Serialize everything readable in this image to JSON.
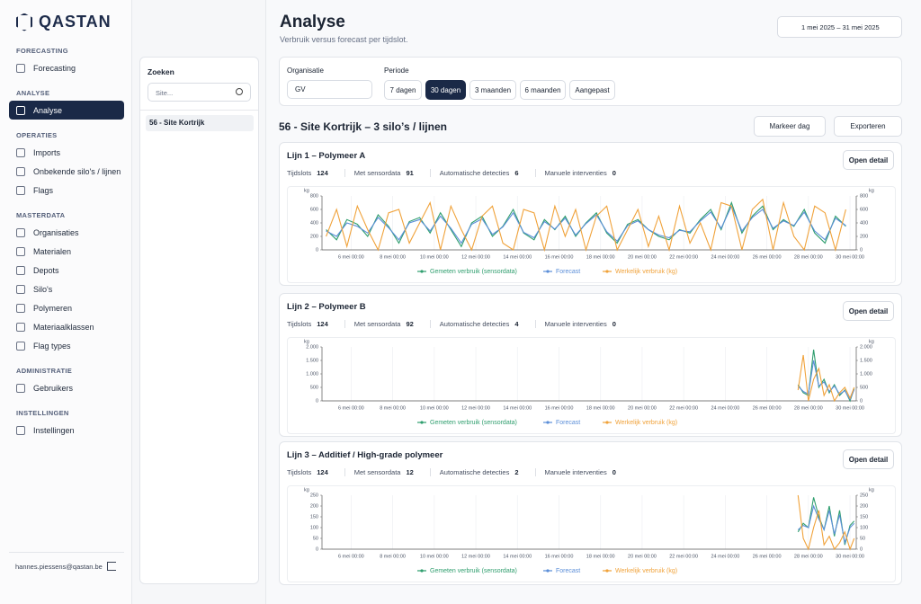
{
  "sidebar": {
    "brand": "QASTAN",
    "sections": [
      {
        "title": "FORECASTING",
        "items": [
          "Forecasting"
        ]
      },
      {
        "title": "ANALYSE",
        "items": [
          "Analyse"
        ]
      },
      {
        "title": "OPERATIES",
        "items": [
          "Imports",
          "Onbekende silo's / lijnen",
          "Flags"
        ]
      },
      {
        "title": "MASTERDATA",
        "items": [
          "Organisaties",
          "Materialen",
          "Depots",
          "Silo's",
          "Polymeren",
          "Materiaalklassen",
          "Flag types"
        ]
      },
      {
        "title": "ADMINISTRATIE",
        "items": [
          "Gebruikers"
        ]
      },
      {
        "title": "INSTELLINGEN",
        "items": [
          "Instellingen"
        ]
      }
    ],
    "active": "Analyse",
    "user": "hannes.piessens@qastan.be"
  },
  "header": {
    "title": "Analyse",
    "subtitle": "Verbruik versus forecast per tijdslot.",
    "date_range": "1 mei 2025 – 31 mei 2025"
  },
  "search": {
    "title": "Zoeken",
    "placeholder": "Site...",
    "results": [
      "56 - Site Kortrijk"
    ]
  },
  "filters": {
    "org_label": "Organisatie",
    "org_value": "GV",
    "period_label": "Periode",
    "periods": [
      "7 dagen",
      "30 dagen",
      "3 maanden",
      "6 maanden",
      "Aangepast"
    ],
    "active_period": "30 dagen"
  },
  "section": {
    "title": "56 - Site Kortrijk – 3 silo’s / lijnen",
    "buttons": [
      "Markeer dag",
      "Exporteren"
    ]
  },
  "chart_data": [
    {
      "type": "line",
      "title": "Lijn 1 – Polymeer A",
      "action": "Open detail",
      "stats": [
        {
          "label": "Tijdslots",
          "value": 124
        },
        {
          "label": "Met sensordata",
          "value": 91
        },
        {
          "label": "Automatische detecties",
          "value": 6
        },
        {
          "label": "Manuele interventies",
          "value": 0
        }
      ],
      "ylabel": "kg",
      "y2label": "kg",
      "xlim": [
        4.6,
        30.3
      ],
      "ylim": [
        0,
        800
      ],
      "yticks": [
        0,
        200,
        400,
        600,
        800
      ],
      "y2lim": [
        0,
        800
      ],
      "y2ticks": [
        0,
        200,
        400,
        600,
        800
      ],
      "grid": true,
      "xticks": [
        {
          "value": 6,
          "label": "6 mei 00:00"
        },
        {
          "value": 8,
          "label": "8 mei 00:00"
        },
        {
          "value": 10,
          "label": "10 mei 00:00"
        },
        {
          "value": 12,
          "label": "12 mei 00:00"
        },
        {
          "value": 14,
          "label": "14 mei 00:00"
        },
        {
          "value": 16,
          "label": "16 mei 00:00"
        },
        {
          "value": 18,
          "label": "18 mei 00:00"
        },
        {
          "value": 20,
          "label": "20 mei 00:00"
        },
        {
          "value": 22,
          "label": "22 mei 00:00"
        },
        {
          "value": 24,
          "label": "24 mei 00:00"
        },
        {
          "value": 26,
          "label": "26 mei 00:00"
        },
        {
          "value": 28,
          "label": "28 mei 00:00"
        },
        {
          "value": 30,
          "label": "30 mei 00:00"
        }
      ],
      "x": [
        4.8,
        5.3,
        5.8,
        6.3,
        6.8,
        7.3,
        7.8,
        8.3,
        8.8,
        9.3,
        9.8,
        10.3,
        10.8,
        11.3,
        11.8,
        12.3,
        12.8,
        13.3,
        13.8,
        14.3,
        14.8,
        15.3,
        15.8,
        16.3,
        16.8,
        17.3,
        17.8,
        18.3,
        18.8,
        19.3,
        19.8,
        20.3,
        20.8,
        21.3,
        21.8,
        22.3,
        22.8,
        23.3,
        23.8,
        24.3,
        24.8,
        25.3,
        25.8,
        26.3,
        26.8,
        27.3,
        27.8,
        28.3,
        28.8,
        29.3,
        29.8
      ],
      "series": [
        {
          "name": "Gemeten verbruik (sensordata)",
          "color": "#2f9e6e",
          "values": [
            300,
            150,
            450,
            380,
            200,
            520,
            350,
            100,
            420,
            480,
            250,
            550,
            300,
            50,
            400,
            500,
            200,
            350,
            600,
            250,
            150,
            450,
            300,
            500,
            200,
            400,
            550,
            250,
            100,
            380,
            450,
            300,
            200,
            150,
            300,
            250,
            450,
            600,
            300,
            700,
            250,
            500,
            650,
            300,
            450,
            350,
            600,
            250,
            100,
            500,
            350
          ]
        },
        {
          "name": "Forecast",
          "color": "#5b8ed8",
          "values": [
            280,
            200,
            400,
            350,
            250,
            480,
            330,
            150,
            400,
            450,
            280,
            500,
            320,
            100,
            380,
            460,
            230,
            340,
            550,
            260,
            180,
            420,
            310,
            470,
            220,
            390,
            520,
            270,
            130,
            360,
            430,
            300,
            220,
            180,
            290,
            270,
            430,
            560,
            320,
            650,
            280,
            480,
            600,
            320,
            430,
            360,
            560,
            280,
            150,
            470,
            360
          ]
        },
        {
          "name": "Werkelijk verbruik (kg)",
          "color": "#f0a23a",
          "values": [
            200,
            600,
            50,
            650,
            300,
            0,
            550,
            600,
            100,
            400,
            700,
            0,
            650,
            300,
            0,
            500,
            650,
            100,
            0,
            600,
            550,
            0,
            650,
            200,
            600,
            0,
            500,
            650,
            0,
            300,
            600,
            50,
            500,
            0,
            650,
            100,
            400,
            0,
            700,
            650,
            0,
            600,
            750,
            0,
            700,
            200,
            0,
            650,
            550,
            0,
            600
          ]
        }
      ]
    },
    {
      "type": "line",
      "title": "Lijn 2 – Polymeer B",
      "action": "Open detail",
      "stats": [
        {
          "label": "Tijdslots",
          "value": 124
        },
        {
          "label": "Met sensordata",
          "value": 92
        },
        {
          "label": "Automatische detecties",
          "value": 4
        },
        {
          "label": "Manuele interventies",
          "value": 0
        }
      ],
      "ylabel": "kg",
      "y2label": "kg",
      "xlim": [
        4.6,
        30.3
      ],
      "ylim": [
        0,
        2000
      ],
      "yticks": [
        0,
        500,
        {
          "value": 1000,
          "label": "1.000"
        },
        {
          "value": 1500,
          "label": "1.500"
        },
        {
          "value": 2000,
          "label": "2.000"
        }
      ],
      "y2lim": [
        0,
        2000
      ],
      "y2ticks": [
        0,
        500,
        {
          "value": 1000,
          "label": "1.000"
        },
        {
          "value": 1500,
          "label": "1.500"
        },
        {
          "value": 2000,
          "label": "2.000"
        }
      ],
      "grid": true,
      "xticks": [
        {
          "value": 6,
          "label": "6 mei 00:00"
        },
        {
          "value": 8,
          "label": "8 mei 00:00"
        },
        {
          "value": 10,
          "label": "10 mei 00:00"
        },
        {
          "value": 12,
          "label": "12 mei 00:00"
        },
        {
          "value": 14,
          "label": "14 mei 00:00"
        },
        {
          "value": 16,
          "label": "16 mei 00:00"
        },
        {
          "value": 18,
          "label": "18 mei 00:00"
        },
        {
          "value": 20,
          "label": "20 mei 00:00"
        },
        {
          "value": 22,
          "label": "22 mei 00:00"
        },
        {
          "value": 24,
          "label": "24 mei 00:00"
        },
        {
          "value": 26,
          "label": "26 mei 00:00"
        },
        {
          "value": 28,
          "label": "28 mei 00:00"
        },
        {
          "value": 30,
          "label": "30 mei 00:00"
        }
      ],
      "x": [
        27.5,
        27.75,
        28,
        28.25,
        28.5,
        28.75,
        29,
        29.25,
        29.5,
        29.75,
        30,
        30.2
      ],
      "series": [
        {
          "name": "Gemeten verbruik (sensordata)",
          "color": "#2f9e6e",
          "values": [
            600,
            300,
            200,
            1900,
            500,
            800,
            300,
            600,
            200,
            400,
            0,
            450
          ]
        },
        {
          "name": "Forecast",
          "color": "#5b8ed8",
          "values": [
            550,
            350,
            250,
            1500,
            550,
            700,
            350,
            550,
            250,
            380,
            50,
            420
          ]
        },
        {
          "name": "Werkelijk verbruik (kg)",
          "color": "#f0a23a",
          "values": [
            400,
            1700,
            0,
            800,
            1200,
            200,
            600,
            0,
            300,
            500,
            100,
            500
          ]
        }
      ]
    },
    {
      "type": "line",
      "title": "Lijn 3 – Additief / High-grade polymeer",
      "action": "Open detail",
      "stats": [
        {
          "label": "Tijdslots",
          "value": 124
        },
        {
          "label": "Met sensordata",
          "value": 12
        },
        {
          "label": "Automatische detecties",
          "value": 2
        },
        {
          "label": "Manuele interventies",
          "value": 0
        }
      ],
      "ylabel": "kg",
      "y2label": "kg",
      "xlim": [
        4.6,
        30.3
      ],
      "ylim": [
        0,
        250
      ],
      "yticks": [
        0,
        50,
        100,
        150,
        200,
        250
      ],
      "y2lim": [
        0,
        250
      ],
      "y2ticks": [
        0,
        50,
        100,
        150,
        200,
        250
      ],
      "grid": true,
      "xticks": [
        {
          "value": 6,
          "label": "6 mei 00:00"
        },
        {
          "value": 8,
          "label": "8 mei 00:00"
        },
        {
          "value": 10,
          "label": "10 mei 00:00"
        },
        {
          "value": 12,
          "label": "12 mei 00:00"
        },
        {
          "value": 14,
          "label": "14 mei 00:00"
        },
        {
          "value": 16,
          "label": "16 mei 00:00"
        },
        {
          "value": 18,
          "label": "18 mei 00:00"
        },
        {
          "value": 20,
          "label": "20 mei 00:00"
        },
        {
          "value": 22,
          "label": "22 mei 00:00"
        },
        {
          "value": 24,
          "label": "24 mei 00:00"
        },
        {
          "value": 26,
          "label": "26 mei 00:00"
        },
        {
          "value": 28,
          "label": "28 mei 00:00"
        },
        {
          "value": 30,
          "label": "30 mei 00:00"
        }
      ],
      "x": [
        27.5,
        27.75,
        28,
        28.25,
        28.5,
        28.75,
        29,
        29.25,
        29.5,
        29.75,
        30,
        30.2
      ],
      "series": [
        {
          "name": "Gemeten verbruik (sensordata)",
          "color": "#2f9e6e",
          "values": [
            80,
            120,
            100,
            240,
            150,
            90,
            200,
            60,
            180,
            20,
            110,
            130
          ]
        },
        {
          "name": "Forecast",
          "color": "#5b8ed8",
          "values": [
            90,
            110,
            100,
            200,
            140,
            90,
            180,
            70,
            160,
            30,
            100,
            120
          ]
        },
        {
          "name": "Werkelijk verbruik (kg)",
          "color": "#f0a23a",
          "values": [
            250,
            50,
            0,
            100,
            180,
            20,
            60,
            0,
            30,
            80,
            0,
            50
          ]
        }
      ]
    }
  ]
}
